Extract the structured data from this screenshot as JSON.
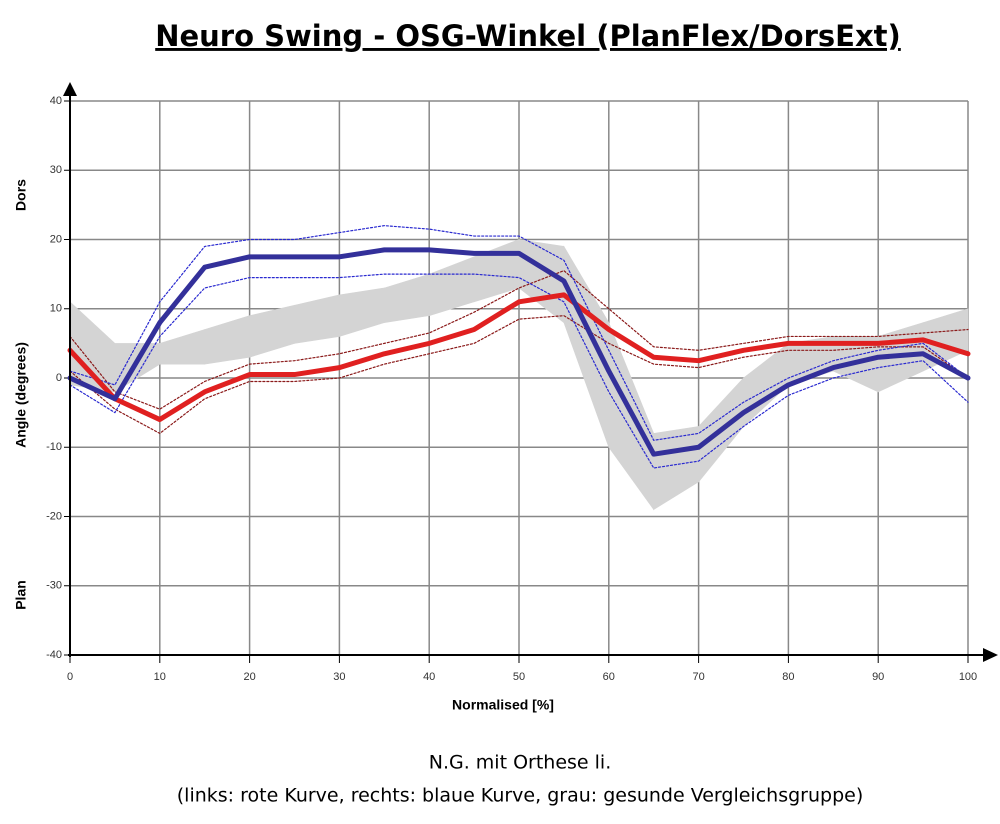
{
  "chart_data": {
    "type": "line",
    "title": "Neuro Swing - OSG-Winkel (PlanFlex/DorsExt)",
    "y_label_top": "Dors",
    "y_label": "Angle (degrees)",
    "y_label_bottom": "Plan",
    "x_label": "Normalised [%]",
    "caption": [
      "N.G. mit Orthese  li.",
      "(links: rote Kurve, rechts: blaue Kurve, grau: gesunde Vergleichsgruppe)"
    ],
    "x": [
      0,
      5,
      10,
      15,
      20,
      25,
      30,
      35,
      40,
      45,
      50,
      55,
      60,
      65,
      70,
      75,
      80,
      85,
      90,
      95,
      100
    ],
    "xlim": [
      0,
      100
    ],
    "xticks": [
      0,
      10,
      20,
      30,
      40,
      50,
      60,
      70,
      80,
      90,
      100
    ],
    "ylim": [
      -40,
      40
    ],
    "yticks": [
      -40,
      -30,
      -20,
      -10,
      0,
      10,
      20,
      30,
      40
    ],
    "grid": true,
    "band": {
      "color": "#d4d4d4",
      "upper": [
        11,
        5,
        5,
        7,
        9,
        10.5,
        12,
        13,
        15,
        17.5,
        20,
        19,
        8,
        -8,
        -7,
        0,
        5,
        6,
        6,
        8,
        10
      ],
      "lower": [
        -1,
        -2,
        2,
        2,
        3,
        5,
        6,
        8,
        9,
        11,
        13,
        8,
        -10,
        -19,
        -15,
        -7,
        -1,
        1,
        -2,
        1,
        4
      ]
    },
    "series": [
      {
        "color": "#8b1a1a",
        "style": "dotted",
        "values": [
          6,
          -2,
          -4.5,
          -0.5,
          2,
          2.5,
          3.5,
          5,
          6.5,
          9.5,
          13,
          15.5,
          10,
          4.5,
          4,
          5,
          6,
          6,
          6,
          6.5,
          7
        ]
      },
      {
        "color": "#8b1a1a",
        "style": "dotted",
        "values": [
          1,
          -4.5,
          -8,
          -3,
          -0.5,
          -0.5,
          0,
          2,
          3.5,
          5,
          8.5,
          9,
          5,
          2,
          1.5,
          3,
          4,
          4,
          4.5,
          4.5,
          0
        ]
      },
      {
        "color": "#2a2ad0",
        "style": "dotted",
        "values": [
          1,
          -1,
          11,
          19,
          20,
          20,
          21,
          22,
          21.5,
          20.5,
          20.5,
          17,
          4,
          -9,
          -8,
          -3.5,
          0,
          2.5,
          4,
          5,
          0
        ]
      },
      {
        "color": "#2a2ad0",
        "style": "dotted",
        "values": [
          -1,
          -5,
          6,
          13,
          14.5,
          14.5,
          14.5,
          15,
          15,
          15,
          14.5,
          11,
          -2,
          -13,
          -12,
          -7,
          -2.5,
          0,
          1.5,
          2.5,
          -3.5
        ]
      },
      {
        "color": "#e02020",
        "style": "solid",
        "values": [
          4,
          -3,
          -6,
          -2,
          0.5,
          0.5,
          1.5,
          3.5,
          5,
          7,
          11,
          12,
          7,
          3,
          2.5,
          4,
          5,
          5,
          5,
          5.5,
          3.5
        ]
      },
      {
        "color": "#33309a",
        "style": "solid",
        "values": [
          0,
          -3,
          8,
          16,
          17.5,
          17.5,
          17.5,
          18.5,
          18.5,
          18,
          18,
          14,
          1,
          -11,
          -10,
          -5,
          -1,
          1.5,
          3,
          3.5,
          0
        ]
      }
    ]
  }
}
